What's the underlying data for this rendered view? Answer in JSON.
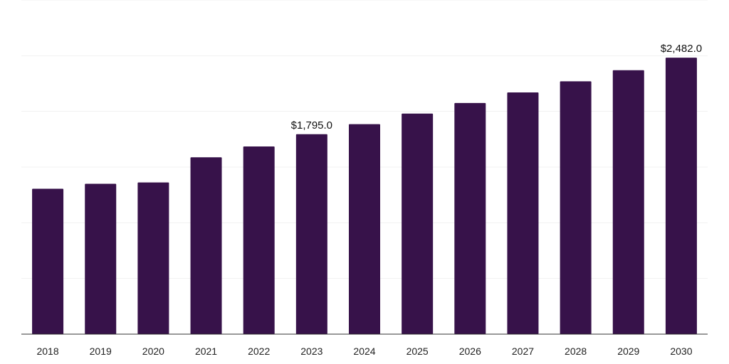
{
  "chart_data": {
    "type": "bar",
    "categories": [
      "2018",
      "2019",
      "2020",
      "2021",
      "2022",
      "2023",
      "2024",
      "2025",
      "2026",
      "2027",
      "2028",
      "2029",
      "2030"
    ],
    "values": [
      1305,
      1350,
      1362,
      1588,
      1685,
      1795,
      1885,
      1980,
      2075,
      2170,
      2270,
      2370,
      2482
    ],
    "data_labels": [
      {
        "index": 5,
        "text": "$1,795.0"
      },
      {
        "index": 12,
        "text": "$2,482.0"
      }
    ],
    "title": "",
    "xlabel": "",
    "ylabel": "",
    "ylim": [
      0,
      3000
    ],
    "grid": true,
    "legend": "none",
    "bar_color": "#37124a"
  }
}
